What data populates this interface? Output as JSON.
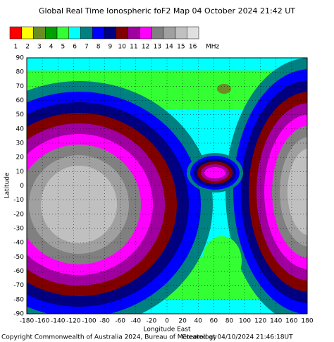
{
  "chart_data": {
    "type": "contour-map",
    "title": "Global Real Time Ionospheric foF2 Map  04 October 2024 21:42 UT",
    "scale": {
      "labels": [
        "1",
        "2",
        "3",
        "4",
        "5",
        "6",
        "7",
        "8",
        "9",
        "10",
        "11",
        "12",
        "13",
        "14",
        "15",
        "16"
      ],
      "colors": [
        "#ff0000",
        "#ffff00",
        "#6b8e23",
        "#00a000",
        "#33ff33",
        "#00ffff",
        "#008080",
        "#0000ff",
        "#000080",
        "#800000",
        "#a000a0",
        "#ff00ff",
        "#808080",
        "#a0a0a0",
        "#c0c0c0",
        "#e0e0e0"
      ],
      "unit": "MHz"
    },
    "x_label": "Longitude East",
    "y_label": "Latitude",
    "xlim": [
      -180,
      180
    ],
    "ylim": [
      -90,
      90
    ],
    "xticks": [
      -180,
      -160,
      -140,
      -120,
      -100,
      -80,
      -60,
      -40,
      -20,
      0,
      20,
      40,
      60,
      80,
      100,
      120,
      140,
      160,
      180
    ],
    "yticks": [
      -90,
      -80,
      -70,
      -60,
      -50,
      -40,
      -30,
      -20,
      -10,
      0,
      10,
      20,
      30,
      40,
      50,
      60,
      70,
      80,
      90
    ],
    "grid": true,
    "footer_left": "Copyright Commonwealth of Australia 2024, Bureau of Meteorology",
    "footer_right": "Created at 04/10/2024 21:46:18UT"
  }
}
